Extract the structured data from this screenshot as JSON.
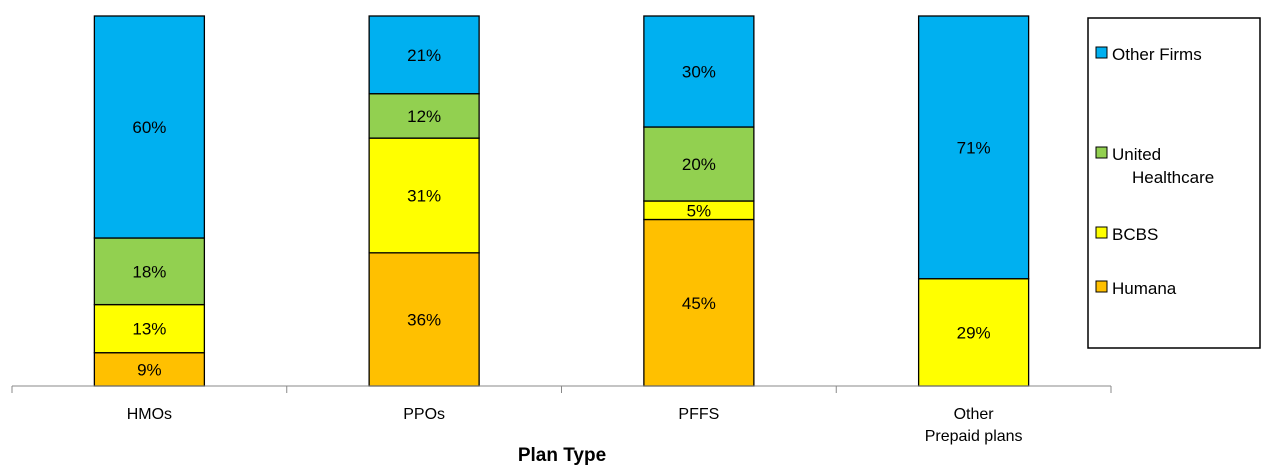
{
  "chart_data": {
    "type": "bar",
    "stacked": true,
    "percent_stacked": true,
    "xlabel": "Plan Type",
    "ylabel": "",
    "ylim": [
      0,
      100
    ],
    "categories": [
      [
        "HMOs"
      ],
      [
        "PPOs"
      ],
      [
        "PFFS"
      ],
      [
        "Other",
        "Prepaid plans"
      ]
    ],
    "series": [
      {
        "name": "Humana",
        "color": "#FFC000",
        "values": [
          9,
          36,
          45,
          0
        ],
        "labels": [
          "9%",
          "36%",
          "45%",
          ""
        ]
      },
      {
        "name": "BCBS",
        "color": "#FFFF00",
        "values": [
          13,
          31,
          5,
          29
        ],
        "labels": [
          "13%",
          "31%",
          "5%",
          "29%"
        ]
      },
      {
        "name": "United Healthcare",
        "legend_lines": [
          "United",
          "Healthcare"
        ],
        "color": "#92D050",
        "values": [
          18,
          12,
          20,
          0
        ],
        "labels": [
          "18%",
          "12%",
          "20%",
          ""
        ]
      },
      {
        "name": "Other Firms",
        "color": "#00B0F0",
        "values": [
          60,
          21,
          30,
          71
        ],
        "labels": [
          "60%",
          "21%",
          "30%",
          "71%"
        ]
      }
    ],
    "legend_order": [
      "Other Firms",
      "United Healthcare",
      "BCBS",
      "Humana"
    ],
    "legend_position": "right",
    "grid": false
  }
}
